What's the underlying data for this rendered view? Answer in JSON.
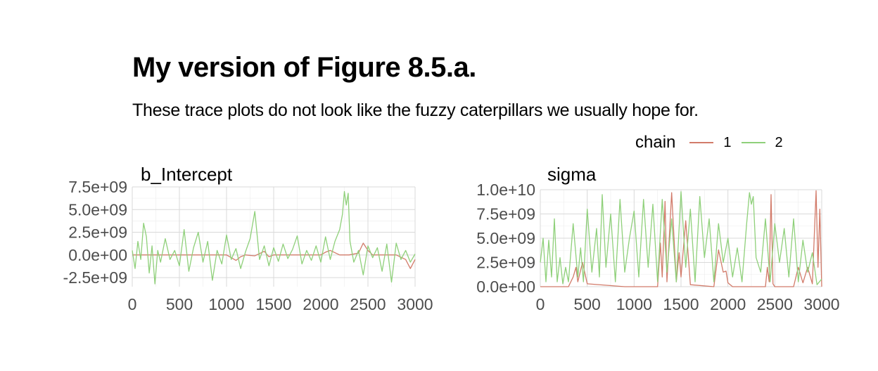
{
  "title": "My version of Figure 8.5.a.",
  "subtitle": "These trace plots do not look like the fuzzy caterpillars we usually hope for.",
  "legend": {
    "title": "chain",
    "entries": [
      {
        "label": "1",
        "color": "#d27b6a"
      },
      {
        "label": "2",
        "color": "#8fd07a"
      }
    ]
  },
  "chart_data": [
    {
      "type": "line",
      "title": "b_Intercept",
      "xlim": [
        0,
        3000
      ],
      "ylim": [
        -3500000000,
        7500000000
      ],
      "x_ticks": [
        0,
        500,
        1000,
        1500,
        2000,
        2500,
        3000
      ],
      "x_tick_labels": [
        "0",
        "500",
        "1000",
        "1500",
        "2000",
        "2500",
        "3000"
      ],
      "y_ticks": [
        -2500000000,
        0,
        2500000000,
        5000000000,
        7500000000
      ],
      "y_tick_labels": [
        "-2.5e+09",
        "0.0e+00",
        "2.5e+09",
        "5.0e+09",
        "7.5e+09"
      ],
      "series": [
        {
          "name": "1",
          "color": "#d27b6a",
          "x": [
            0,
            100,
            200,
            300,
            400,
            500,
            600,
            700,
            800,
            900,
            1000,
            1050,
            1100,
            1150,
            1200,
            1300,
            1400,
            1450,
            1500,
            1600,
            1700,
            1800,
            1900,
            2000,
            2050,
            2100,
            2200,
            2300,
            2400,
            2450,
            2500,
            2550,
            2600,
            2700,
            2800,
            2900,
            2950,
            3000
          ],
          "y": [
            0,
            0,
            0,
            0,
            0,
            0,
            0,
            0,
            0,
            0,
            0,
            -300000000,
            -600000000,
            -200000000,
            0,
            -100000000,
            400000000,
            -200000000,
            0,
            0,
            0,
            0,
            0,
            0,
            300000000,
            500000000,
            0,
            0,
            200000000,
            1300000000,
            500000000,
            0,
            0,
            0,
            0,
            -500000000,
            -1500000000,
            -500000000
          ]
        },
        {
          "name": "2",
          "color": "#8fd07a",
          "x": [
            0,
            30,
            60,
            90,
            120,
            150,
            180,
            210,
            240,
            270,
            300,
            350,
            400,
            450,
            500,
            550,
            600,
            650,
            700,
            750,
            800,
            850,
            900,
            950,
            1000,
            1050,
            1100,
            1150,
            1200,
            1250,
            1300,
            1350,
            1400,
            1450,
            1500,
            1550,
            1600,
            1650,
            1700,
            1750,
            1800,
            1850,
            1900,
            1950,
            2000,
            2050,
            2100,
            2150,
            2200,
            2230,
            2250,
            2270,
            2290,
            2310,
            2350,
            2400,
            2450,
            2500,
            2550,
            2600,
            2650,
            2700,
            2750,
            2800,
            2850,
            2900,
            2950,
            3000
          ],
          "y": [
            500000000,
            -1500000000,
            1500000000,
            -500000000,
            3500000000,
            2000000000,
            -2000000000,
            1000000000,
            -3200000000,
            500000000,
            -800000000,
            1800000000,
            -500000000,
            500000000,
            -1200000000,
            2800000000,
            -1800000000,
            800000000,
            2500000000,
            -800000000,
            1500000000,
            -2800000000,
            500000000,
            -1000000000,
            2200000000,
            -500000000,
            700000000,
            -1500000000,
            300000000,
            1800000000,
            4800000000,
            -500000000,
            1000000000,
            -1200000000,
            800000000,
            -700000000,
            1200000000,
            -400000000,
            600000000,
            2100000000,
            -1000000000,
            500000000,
            -600000000,
            1000000000,
            -800000000,
            2000000000,
            -500000000,
            1500000000,
            2800000000,
            4500000000,
            7000000000,
            5500000000,
            6800000000,
            1500000000,
            -800000000,
            500000000,
            -2200000000,
            1000000000,
            -300000000,
            800000000,
            -1800000000,
            1200000000,
            -3000000000,
            1300000000,
            -500000000,
            500000000,
            -800000000,
            100000000
          ]
        }
      ]
    },
    {
      "type": "line",
      "title": "sigma",
      "xlim": [
        0,
        3000
      ],
      "ylim": [
        0,
        10000000000
      ],
      "x_ticks": [
        0,
        500,
        1000,
        1500,
        2000,
        2500,
        3000
      ],
      "x_tick_labels": [
        "0",
        "500",
        "1000",
        "1500",
        "2000",
        "2500",
        "3000"
      ],
      "y_ticks": [
        0,
        2500000000,
        5000000000,
        7500000000,
        10000000000
      ],
      "y_tick_labels": [
        "0.0e+00",
        "2.5e+09",
        "5.0e+09",
        "7.5e+09",
        "1.0e+10"
      ],
      "series": [
        {
          "name": "1",
          "color": "#d27b6a",
          "x": [
            0,
            300,
            350,
            380,
            400,
            450,
            500,
            900,
            1250,
            1280,
            1300,
            1330,
            1350,
            1400,
            1450,
            1480,
            1500,
            1550,
            1600,
            1850,
            1900,
            1950,
            1980,
            2000,
            2050,
            2400,
            2420,
            2440,
            2460,
            2480,
            2500,
            2700,
            2750,
            2800,
            2850,
            2900,
            2940,
            2960,
            2980,
            3000
          ],
          "y": [
            0,
            0,
            1000000000,
            2000000000,
            500000000,
            2500000000,
            300000000,
            0,
            0,
            4500000000,
            1000000000,
            8800000000,
            500000000,
            9700000000,
            500000000,
            3500000000,
            1000000000,
            6800000000,
            200000000,
            0,
            3800000000,
            1500000000,
            1600000000,
            400000000,
            0,
            0,
            2000000000,
            500000000,
            9500000000,
            300000000,
            0,
            0,
            2000000000,
            400000000,
            2000000000,
            300000000,
            9900000000,
            2000000000,
            8000000000,
            0
          ]
        },
        {
          "name": "2",
          "color": "#8fd07a",
          "x": [
            0,
            30,
            60,
            90,
            120,
            150,
            180,
            210,
            240,
            270,
            300,
            350,
            400,
            430,
            460,
            500,
            550,
            600,
            630,
            660,
            700,
            750,
            800,
            850,
            900,
            950,
            1000,
            1050,
            1100,
            1150,
            1200,
            1250,
            1300,
            1350,
            1400,
            1450,
            1500,
            1550,
            1600,
            1650,
            1700,
            1750,
            1800,
            1850,
            1900,
            1950,
            2000,
            2050,
            2100,
            2150,
            2200,
            2230,
            2250,
            2270,
            2300,
            2350,
            2400,
            2450,
            2500,
            2550,
            2600,
            2650,
            2700,
            2750,
            2800,
            2850,
            2900,
            2950,
            3000
          ],
          "y": [
            2500000000,
            5000000000,
            500000000,
            4800000000,
            1000000000,
            7000000000,
            500000000,
            3000000000,
            300000000,
            2000000000,
            500000000,
            6500000000,
            1000000000,
            4000000000,
            500000000,
            8000000000,
            1500000000,
            6000000000,
            1000000000,
            9500000000,
            2000000000,
            7500000000,
            500000000,
            9000000000,
            1500000000,
            5000000000,
            7800000000,
            1000000000,
            9000000000,
            2000000000,
            8500000000,
            500000000,
            9000000000,
            1500000000,
            7000000000,
            500000000,
            9800000000,
            2000000000,
            8000000000,
            500000000,
            9300000000,
            3000000000,
            7000000000,
            500000000,
            6500000000,
            2500000000,
            5000000000,
            1000000000,
            4000000000,
            500000000,
            6500000000,
            9700000000,
            8500000000,
            9300000000,
            3000000000,
            1500000000,
            7000000000,
            500000000,
            6500000000,
            2500000000,
            6000000000,
            1000000000,
            7000000000,
            500000000,
            4800000000,
            1500000000,
            3500000000,
            200000000,
            800000000
          ]
        }
      ]
    }
  ]
}
